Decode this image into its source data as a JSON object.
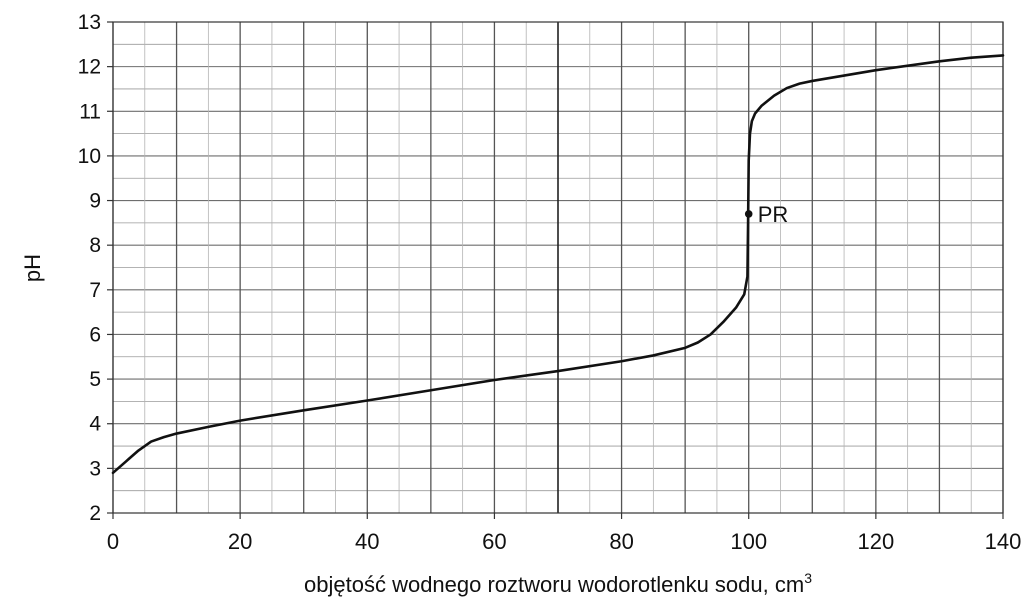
{
  "chart_data": {
    "type": "line",
    "title": "",
    "xlabel": "objętość wodnego roztworu wodorotlenku sodu, cm",
    "xlabel_superscript": "3",
    "ylabel": "pH",
    "xlim": [
      0,
      140
    ],
    "ylim": [
      2,
      13
    ],
    "x_ticks": [
      0,
      20,
      40,
      60,
      80,
      100,
      120,
      140
    ],
    "y_ticks": [
      2,
      3,
      4,
      5,
      6,
      7,
      8,
      9,
      10,
      11,
      12,
      13
    ],
    "grid": true,
    "series": [
      {
        "x": [
          0,
          2,
          4,
          6,
          8,
          10,
          15,
          20,
          30,
          40,
          50,
          60,
          70,
          80,
          85,
          90,
          92,
          94,
          96,
          98,
          99.3,
          99.8,
          99.9,
          100,
          100.2,
          100.5,
          101,
          102,
          104,
          106,
          108,
          110,
          120,
          130,
          135,
          140
        ],
        "y": [
          2.9,
          3.15,
          3.4,
          3.6,
          3.7,
          3.78,
          3.93,
          4.07,
          4.3,
          4.52,
          4.75,
          4.98,
          5.18,
          5.4,
          5.53,
          5.7,
          5.82,
          6.0,
          6.28,
          6.6,
          6.9,
          7.3,
          8.5,
          9.9,
          10.5,
          10.78,
          10.95,
          11.12,
          11.35,
          11.52,
          11.62,
          11.68,
          11.92,
          12.12,
          12.2,
          12.25
        ]
      }
    ],
    "annotations": [
      {
        "label": "PR",
        "x": 100,
        "y": 8.7
      }
    ]
  }
}
